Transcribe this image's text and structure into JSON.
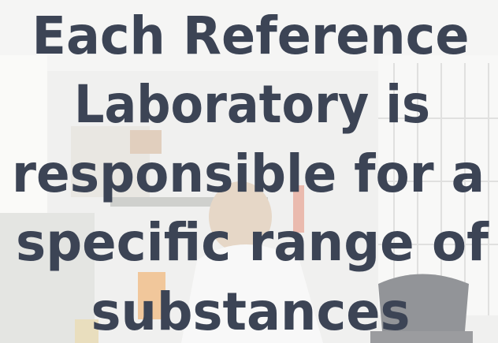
{
  "headline": {
    "lines": [
      "Each Reference",
      "Laboratory is",
      "responsible for a",
      "specific range of",
      "substances"
    ]
  }
}
